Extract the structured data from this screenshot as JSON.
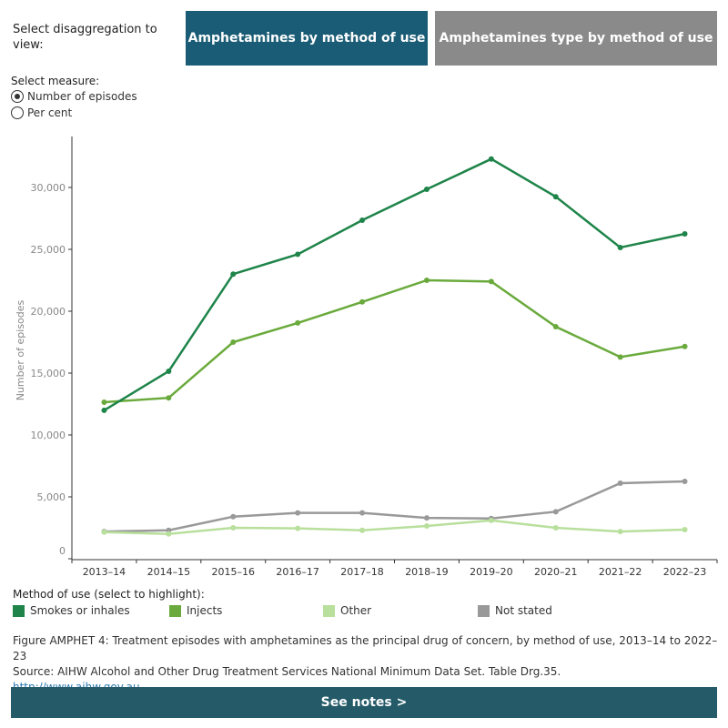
{
  "controls": {
    "disaggregation_label": "Select disaggregation to view:",
    "tabs": [
      {
        "label": "Amphetamines by method of use",
        "active": true
      },
      {
        "label": "Amphetamines type by method of use",
        "active": false
      }
    ],
    "measure_label": "Select measure:",
    "measures": [
      {
        "label": "Number of episodes",
        "selected": true
      },
      {
        "label": "Per cent",
        "selected": false
      }
    ]
  },
  "chart_data": {
    "type": "line",
    "ylabel": "Number of episodes",
    "ylim": [
      0,
      34000
    ],
    "yticks": [
      0,
      5000,
      10000,
      15000,
      20000,
      25000,
      30000
    ],
    "ytick_labels": [
      "0",
      "5,000",
      "10,000",
      "15,000",
      "20,000",
      "25,000",
      "30,000"
    ],
    "categories": [
      "2013–14",
      "2014–15",
      "2015–16",
      "2016–17",
      "2017–18",
      "2018–19",
      "2019–20",
      "2020–21",
      "2021–22",
      "2022–23"
    ],
    "grid": false,
    "series": [
      {
        "name": "Smokes or inhales",
        "color": "#1e8449",
        "values": [
          11990,
          15150,
          23000,
          24600,
          27350,
          29850,
          32300,
          29250,
          25150,
          26250
        ]
      },
      {
        "name": "Injects",
        "color": "#6aaa3c",
        "values": [
          12650,
          13000,
          17500,
          19050,
          20750,
          22500,
          22400,
          18750,
          16300,
          17150
        ]
      },
      {
        "name": "Other",
        "color": "#b8df9c",
        "values": [
          2150,
          2000,
          2500,
          2450,
          2300,
          2650,
          3100,
          2500,
          2200,
          2350
        ]
      },
      {
        "name": "Not stated",
        "color": "#999999",
        "values": [
          2200,
          2300,
          3400,
          3700,
          3700,
          3300,
          3250,
          3800,
          6100,
          6250
        ]
      }
    ],
    "legend_title": "Method of use (select to highlight):",
    "legend_placement": "bottom"
  },
  "caption": {
    "figure": "Figure AMPHET 4: Treatment episodes with amphetamines as the principal drug of concern, by method of use, 2013–14 to 2022–23",
    "source": "Source: AIHW Alcohol and Other Drug Treatment Services National Minimum Data Set. Table Drg.35.",
    "link": "http://www.aihw.gov.au"
  },
  "notes_button": "See notes >"
}
